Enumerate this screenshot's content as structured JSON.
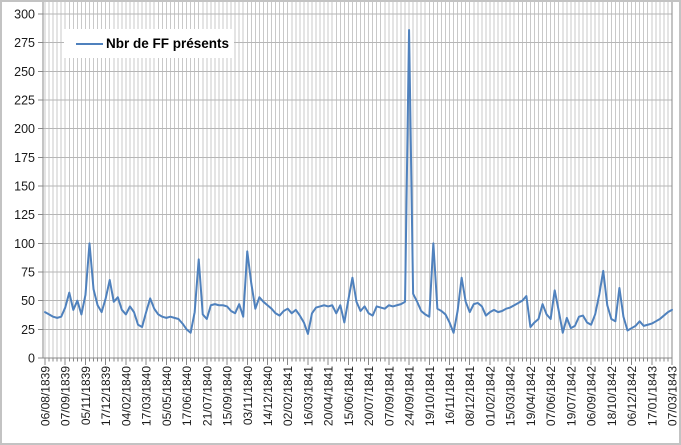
{
  "legend": {
    "label": "Nbr de FF présents"
  },
  "chart_data": {
    "type": "line",
    "title": "",
    "legend_entries": [
      "Nbr de FF présents"
    ],
    "legend_position": "top-left",
    "grid": true,
    "line_color": "#4f81bd",
    "gridline_color": "#c9c9c9",
    "axis_color": "#888888",
    "text_color": "#1a1a1a",
    "ylim": [
      0,
      300
    ],
    "y_tick_step": 25,
    "y_tick_labels": [
      "0",
      "25",
      "50",
      "75",
      "100",
      "125",
      "150",
      "175",
      "200",
      "225",
      "250",
      "275",
      "300"
    ],
    "x_label_every": 5,
    "x_labels": [
      "06/08/1839",
      "07/09/1839",
      "05/11/1839",
      "17/12/1839",
      "04/02/1840",
      "17/03/1840",
      "05/05/1840",
      "17/06/1840",
      "21/07/1840",
      "15/09/1840",
      "03/11/1840",
      "14/12/1840",
      "02/02/1841",
      "16/03/1841",
      "20/04/1841",
      "15/06/1841",
      "20/07/1841",
      "07/09/1841",
      "24/09/1841",
      "19/10/1841",
      "16/11/1841",
      "08/12/1841",
      "01/02/1842",
      "15/03/1842",
      "19/04/1842",
      "07/06/1842",
      "19/07/1842",
      "06/09/1842",
      "18/10/1842",
      "06/12/1842",
      "17/01/1843",
      "07/03/1843"
    ],
    "series": [
      {
        "name": "Nbr de FF présents",
        "values": [
          40,
          38,
          36,
          35,
          36,
          44,
          57,
          42,
          50,
          38,
          55,
          100,
          60,
          46,
          40,
          52,
          68,
          49,
          53,
          42,
          38,
          45,
          40,
          29,
          27,
          40,
          52,
          43,
          38,
          36,
          35,
          36,
          35,
          34,
          30,
          25,
          22,
          40,
          86,
          38,
          34,
          46,
          47,
          46,
          46,
          45,
          41,
          39,
          47,
          36,
          93,
          65,
          43,
          53,
          49,
          46,
          43,
          39,
          37,
          41,
          43,
          39,
          42,
          37,
          31,
          21,
          39,
          44,
          45,
          46,
          45,
          46,
          39,
          46,
          31,
          51,
          70,
          49,
          41,
          45,
          39,
          37,
          45,
          44,
          43,
          46,
          45,
          46,
          47,
          49,
          286,
          56,
          49,
          41,
          38,
          36,
          100,
          43,
          41,
          38,
          31,
          22,
          41,
          70,
          49,
          40,
          47,
          48,
          45,
          37,
          40,
          42,
          40,
          41,
          43,
          44,
          46,
          48,
          50,
          54,
          27,
          31,
          34,
          47,
          38,
          34,
          59,
          41,
          22,
          35,
          26,
          28,
          36,
          37,
          31,
          29,
          38,
          55,
          76,
          46,
          34,
          32,
          61,
          36,
          24,
          26,
          28,
          32,
          28,
          29,
          30,
          32,
          34,
          37,
          40,
          42
        ]
      }
    ]
  }
}
